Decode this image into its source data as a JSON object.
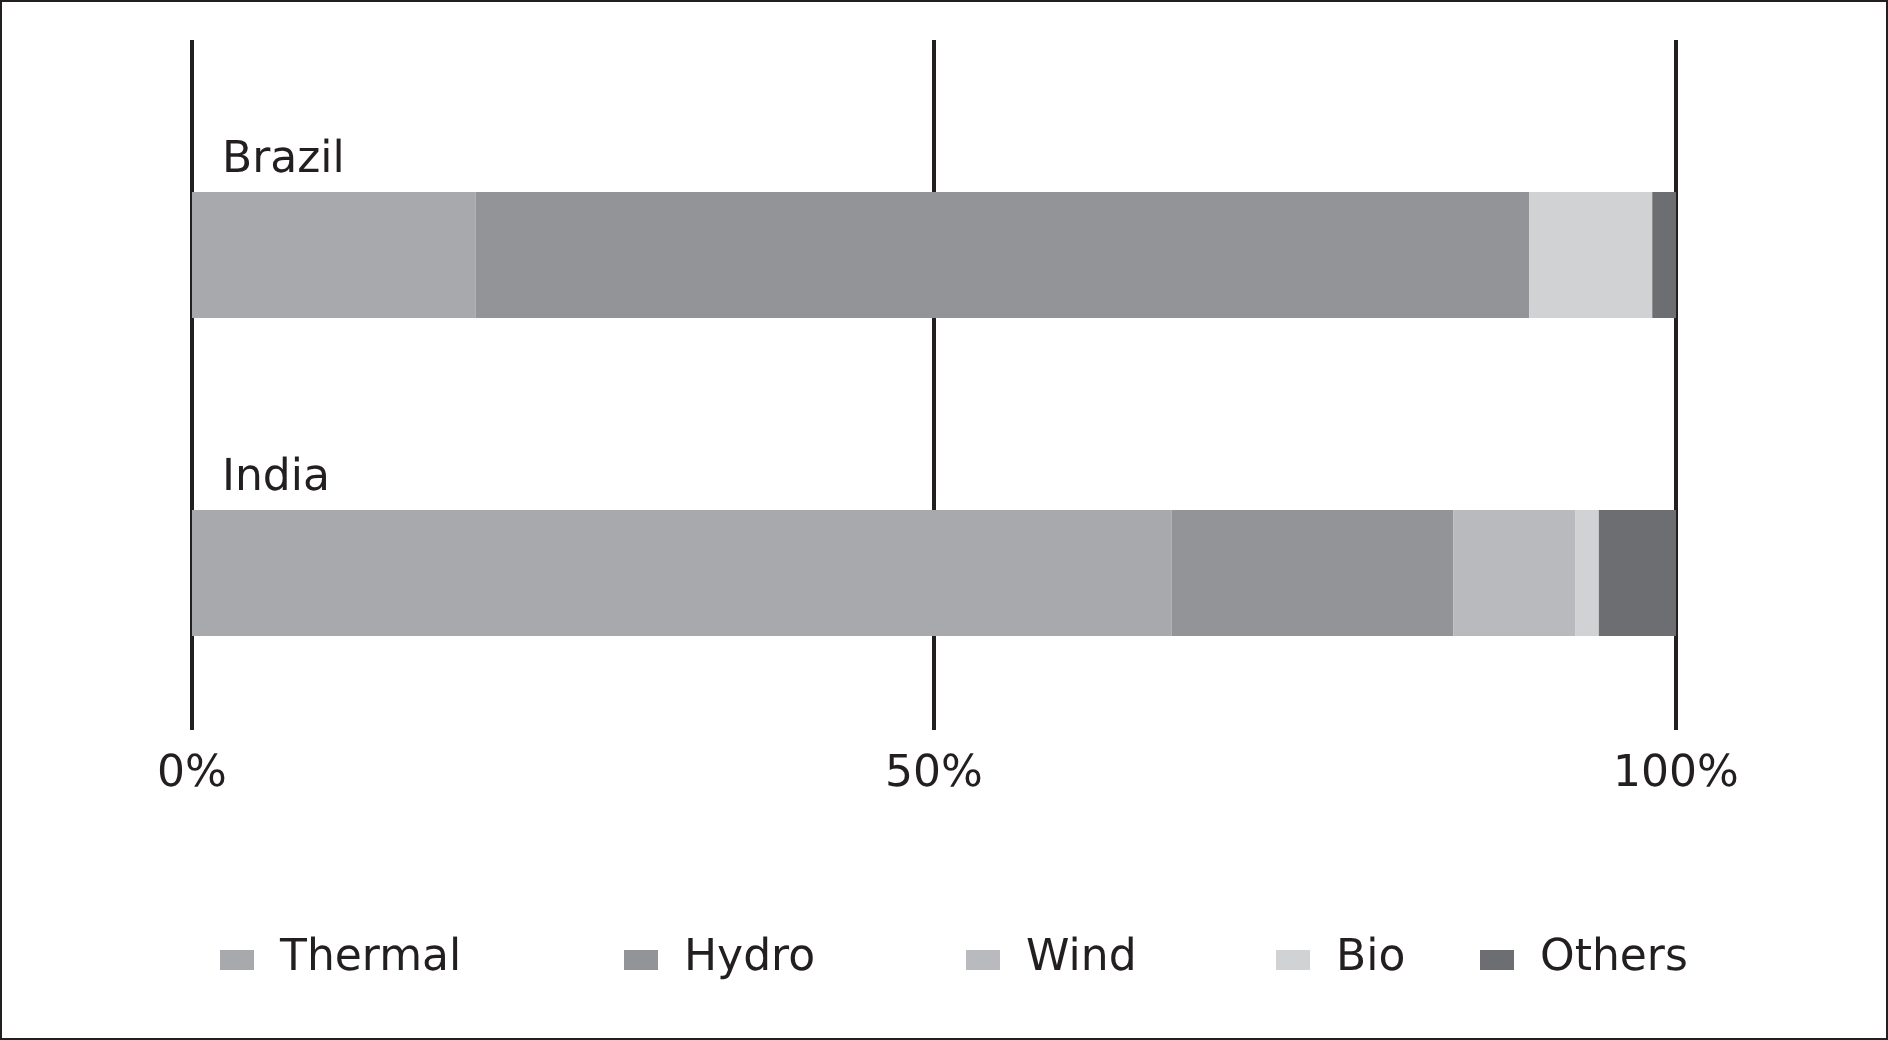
{
  "chart_data": {
    "type": "bar",
    "orientation": "horizontal",
    "stacked": true,
    "categories": [
      "Brazil",
      "India"
    ],
    "series": [
      {
        "name": "Thermal",
        "color": "#a8a9ac",
        "values": [
          19.1,
          66
        ]
      },
      {
        "name": "Hydro",
        "color": "#939497",
        "values": [
          71,
          19
        ]
      },
      {
        "name": "Wind",
        "color": "#b9babd",
        "values": [
          0,
          8.2
        ]
      },
      {
        "name": "Bio",
        "color": "#d1d2d4",
        "values": [
          8.3,
          1.6
        ]
      },
      {
        "name": "Others",
        "color": "#6d6e71",
        "values": [
          1.6,
          5.2
        ]
      }
    ],
    "xlim": [
      0,
      100
    ],
    "xticks": [
      {
        "value": 0,
        "label": "0%"
      },
      {
        "value": 50,
        "label": "50%"
      },
      {
        "value": 100,
        "label": "100%"
      }
    ],
    "grid": "x",
    "legend": "bottom"
  }
}
